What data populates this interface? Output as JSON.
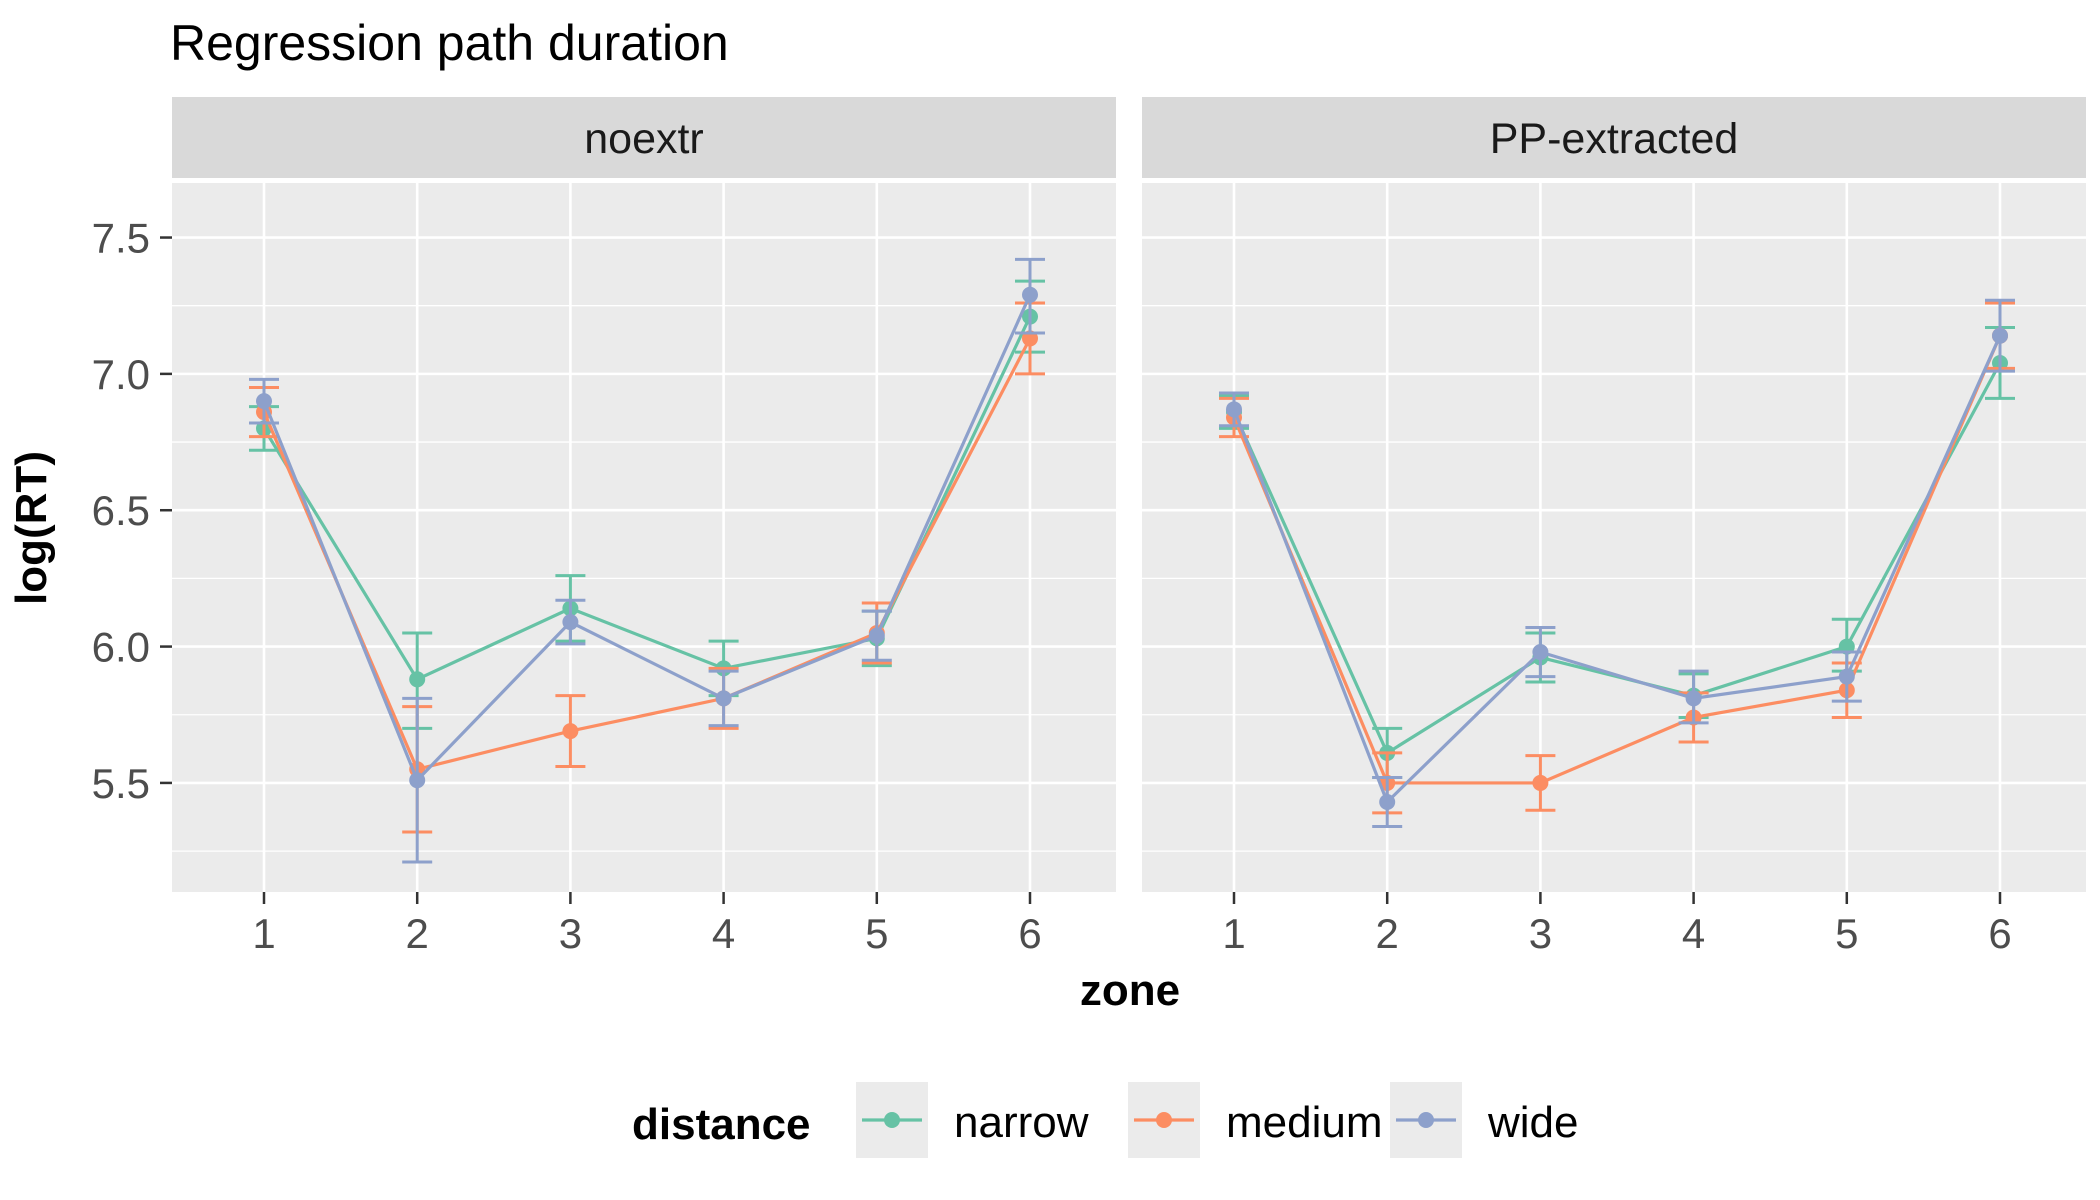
{
  "chart_data": {
    "type": "line",
    "title": "Regression path duration",
    "xlabel": "zone",
    "ylabel": "log(RT)",
    "x": [
      1,
      2,
      3,
      4,
      5,
      6
    ],
    "ylim": [
      5.1,
      7.7
    ],
    "yticks": [
      5.5,
      6.0,
      6.5,
      7.0,
      7.5
    ],
    "ytick_labels": [
      "5.5",
      "6.0",
      "6.5",
      "7.0",
      "7.5"
    ],
    "grid": true,
    "legend": {
      "title": "distance",
      "position": "bottom",
      "entries": [
        "narrow",
        "medium",
        "wide"
      ]
    },
    "colors": {
      "narrow": "#66c2a5",
      "medium": "#fc8d62",
      "wide": "#8da0cb"
    },
    "panels": [
      {
        "label": "noextr",
        "series": [
          {
            "name": "narrow",
            "values": [
              6.8,
              5.88,
              6.14,
              5.92,
              6.03,
              7.21
            ],
            "lower": [
              6.72,
              5.7,
              6.02,
              5.82,
              5.93,
              7.08
            ],
            "upper": [
              6.88,
              6.05,
              6.26,
              6.02,
              6.13,
              7.34
            ]
          },
          {
            "name": "medium",
            "values": [
              6.86,
              5.55,
              5.69,
              5.81,
              6.05,
              7.13
            ],
            "lower": [
              6.77,
              5.32,
              5.56,
              5.7,
              5.94,
              7.0
            ],
            "upper": [
              6.95,
              5.78,
              5.82,
              5.92,
              6.16,
              7.26
            ]
          },
          {
            "name": "wide",
            "values": [
              6.9,
              5.51,
              6.09,
              5.81,
              6.04,
              7.29
            ],
            "lower": [
              6.82,
              5.21,
              6.01,
              5.71,
              5.95,
              7.15
            ],
            "upper": [
              6.98,
              5.81,
              6.17,
              5.91,
              6.13,
              7.42
            ]
          }
        ]
      },
      {
        "label": "PP-extracted",
        "series": [
          {
            "name": "narrow",
            "values": [
              6.86,
              5.61,
              5.96,
              5.82,
              6.0,
              7.04
            ],
            "lower": [
              6.8,
              5.52,
              5.87,
              5.74,
              5.91,
              6.91
            ],
            "upper": [
              6.92,
              5.7,
              6.05,
              5.9,
              6.1,
              7.17
            ]
          },
          {
            "name": "medium",
            "values": [
              6.84,
              5.5,
              5.5,
              5.74,
              5.84,
              7.14
            ],
            "lower": [
              6.77,
              5.39,
              5.4,
              5.65,
              5.74,
              7.02
            ],
            "upper": [
              6.91,
              5.61,
              5.6,
              5.83,
              5.94,
              7.26
            ]
          },
          {
            "name": "wide",
            "values": [
              6.87,
              5.43,
              5.98,
              5.81,
              5.89,
              7.14
            ],
            "lower": [
              6.81,
              5.34,
              5.89,
              5.72,
              5.8,
              7.01
            ],
            "upper": [
              6.93,
              5.52,
              6.07,
              5.91,
              5.98,
              7.27
            ]
          }
        ]
      }
    ]
  }
}
